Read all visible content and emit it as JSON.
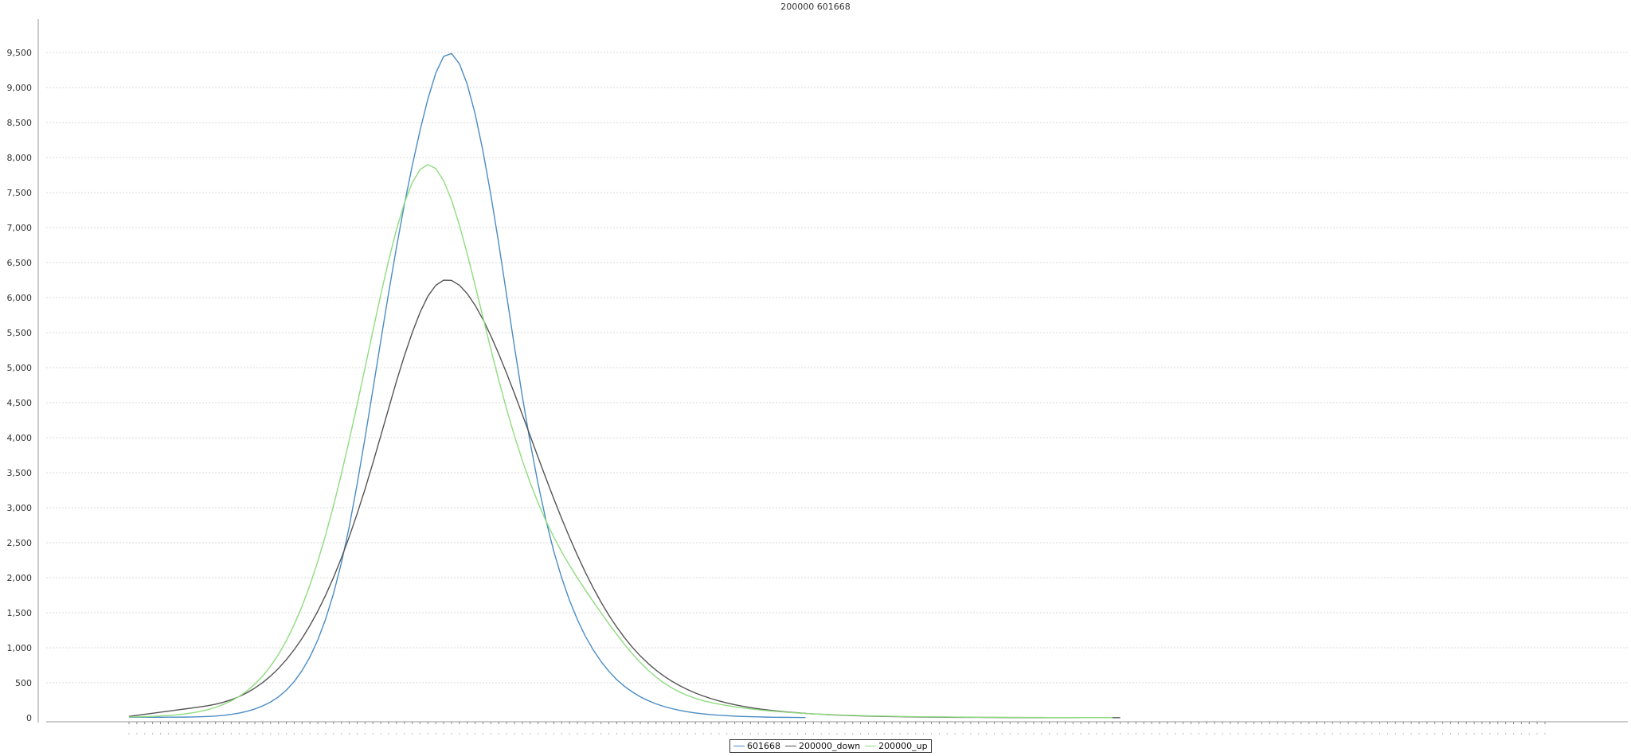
{
  "chart_data": {
    "type": "line",
    "title": "200000 601668",
    "xlabel": "",
    "ylabel": "",
    "ylim": [
      0,
      9500
    ],
    "yticks": [
      0,
      500,
      1000,
      1500,
      2000,
      2500,
      3000,
      3500,
      4000,
      4500,
      5000,
      5500,
      6000,
      6500,
      7000,
      7500,
      8000,
      8500,
      9000,
      9500
    ],
    "ytick_labels": [
      "0",
      "500",
      "1,000",
      "1,500",
      "2,000",
      "2,500",
      "3,000",
      "3,500",
      "4,000",
      "4,500",
      "5,000",
      "5,500",
      "6,000",
      "6,500",
      "7,000",
      "7,500",
      "8,000",
      "8,500",
      "9,000",
      "9,500"
    ],
    "x_count": 181,
    "grid": true,
    "legend_position": "bottom-center",
    "series": [
      {
        "name": "601668",
        "color": "#4a8cc4",
        "values": [
          8,
          8,
          8,
          8,
          8,
          9,
          9,
          10,
          12,
          15,
          19,
          25,
          35,
          49,
          67,
          93,
          126,
          170,
          226,
          299,
          395,
          518,
          674,
          869,
          1112,
          1411,
          1775,
          2212,
          2731,
          3338,
          3995,
          4685,
          5381,
          6066,
          6718,
          7328,
          7882,
          8390,
          8841,
          9208,
          9445,
          9486,
          9339,
          9045,
          8624,
          8090,
          7463,
          6773,
          6035,
          5297,
          4588,
          3931,
          3341,
          2823,
          2376,
          1999,
          1676,
          1402,
          1167,
          972,
          805,
          664,
          545,
          448,
          368,
          300,
          245,
          199,
          162,
          132,
          106,
          86,
          69,
          56,
          45,
          36,
          30,
          24,
          19,
          16,
          13,
          10,
          8,
          7,
          6,
          5,
          4
        ],
        "start_index": 0
      },
      {
        "name": "200000_down",
        "color": "#555555",
        "values": [
          20,
          35,
          50,
          65,
          80,
          95,
          110,
          125,
          140,
          155,
          172,
          194,
          222,
          258,
          303,
          358,
          425,
          504,
          597,
          705,
          830,
          973,
          1135,
          1318,
          1523,
          1752,
          2005,
          2283,
          2586,
          2914,
          3265,
          3637,
          4025,
          4416,
          4806,
          5168,
          5499,
          5790,
          6022,
          6176,
          6249,
          6246,
          6177,
          6055,
          5890,
          5688,
          5454,
          5196,
          4920,
          4630,
          4330,
          4025,
          3720,
          3420,
          3128,
          2845,
          2575,
          2320,
          2080,
          1857,
          1652,
          1465,
          1296,
          1143,
          1005,
          883,
          775,
          680,
          596,
          523,
          459,
          403,
          354,
          311,
          274,
          241,
          212,
          187,
          165,
          146,
          129,
          114,
          101,
          90,
          80,
          71,
          63,
          56,
          50,
          44,
          39,
          35,
          31,
          28,
          25,
          22,
          20,
          18,
          16,
          14,
          12,
          11,
          10,
          9,
          8,
          7,
          7,
          6,
          6,
          5,
          5,
          4,
          4,
          4,
          3,
          3,
          3,
          3,
          2,
          2,
          2,
          2,
          2,
          2,
          2,
          2,
          2
        ],
        "start_index": 0
      },
      {
        "name": "200000_up",
        "color": "#8fdc7f",
        "values": [
          12,
          14,
          17,
          21,
          26,
          33,
          42,
          54,
          70,
          90,
          116,
          149,
          190,
          241,
          305,
          384,
          481,
          598,
          738,
          905,
          1101,
          1330,
          1594,
          1895,
          2235,
          2614,
          3031,
          3484,
          3967,
          4474,
          4997,
          5524,
          6040,
          6529,
          6972,
          7349,
          7641,
          7830,
          7899,
          7843,
          7668,
          7391,
          7035,
          6622,
          6176,
          5717,
          5262,
          4823,
          4409,
          4025,
          3674,
          3356,
          3069,
          2812,
          2580,
          2370,
          2177,
          1997,
          1826,
          1661,
          1500,
          1343,
          1191,
          1047,
          913,
          790,
          679,
          582,
          498,
          427,
          367,
          318,
          278,
          245,
          218,
          195,
          175,
          157,
          141,
          127,
          114,
          103,
          93,
          84,
          76,
          69,
          62,
          56,
          51,
          46,
          42,
          38,
          35,
          32,
          29,
          26,
          24,
          22,
          20,
          18,
          16,
          15,
          14,
          13,
          12,
          11,
          10,
          9,
          8,
          8,
          7,
          7,
          6,
          6,
          5,
          5,
          5,
          4,
          4,
          4,
          4,
          3,
          3,
          3,
          3,
          3
        ],
        "start_index": 0
      }
    ]
  }
}
